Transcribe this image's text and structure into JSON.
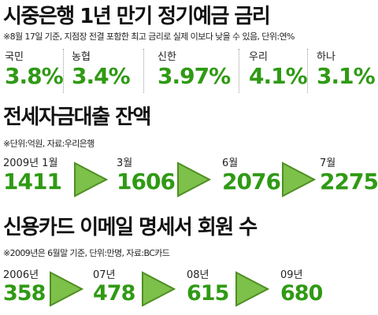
{
  "section1": {
    "title": "시중은행 1년 만기 정기예금 금리",
    "note": "※8월 17일 기준, 지점장 전결 포함한 최고 금리로 실제 이보다 낮을 수 있음, 단위:연%",
    "rates": [
      {
        "bank": "국민",
        "value": "3.8%"
      },
      {
        "bank": "농협",
        "value": "3.4%"
      },
      {
        "bank": "신한",
        "value": "3.97%"
      },
      {
        "bank": "우리",
        "value": "4.1%"
      },
      {
        "bank": "하나",
        "value": "3.1%"
      }
    ]
  },
  "section2": {
    "title": "전세자금대출 잔액",
    "note": "※단위:억원, 자료:우리은행",
    "items": [
      {
        "label": "2009년 1월",
        "value": "1411"
      },
      {
        "label": "3월",
        "value": "1606"
      },
      {
        "label": "6월",
        "value": "2076"
      },
      {
        "label": "7월",
        "value": "2275"
      }
    ]
  },
  "section3": {
    "title": "신용카드 이메일 명세서 회원 수",
    "note": "※2009년은 6월말 기준, 단위:만명, 자료:BC카드",
    "items": [
      {
        "label": "2006년",
        "value": "358"
      },
      {
        "label": "07년",
        "value": "478"
      },
      {
        "label": "08년",
        "value": "615"
      },
      {
        "label": "09년",
        "value": "680"
      }
    ]
  },
  "colors": {
    "accent": "#2f9a14",
    "arrow": "#7dc04a",
    "arrow_stroke": "#4f8f22"
  },
  "icons": [
    "arrow-right-icon"
  ]
}
